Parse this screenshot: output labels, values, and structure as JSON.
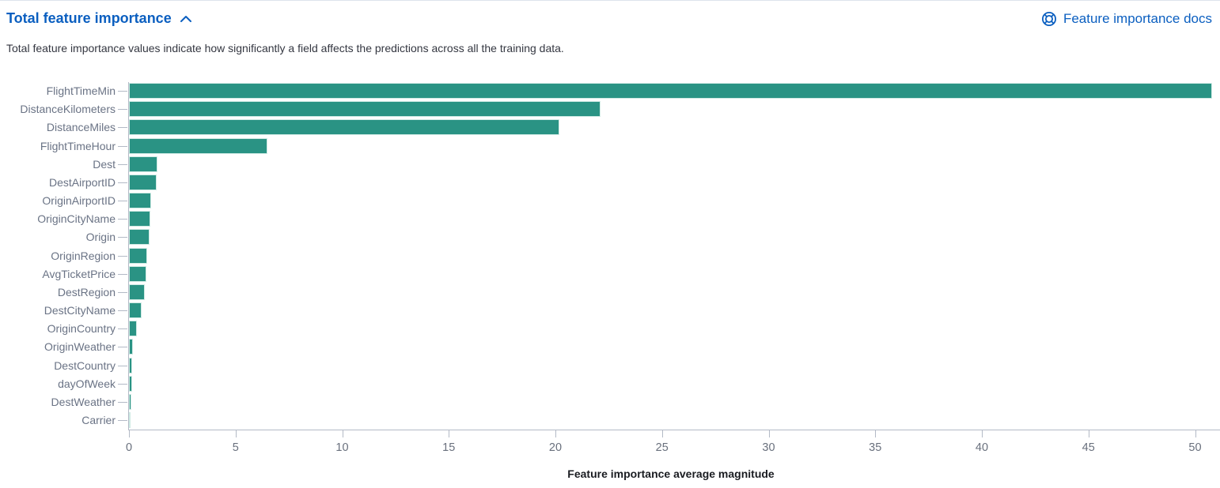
{
  "header": {
    "title": "Total feature importance",
    "docs_link": "Feature importance docs"
  },
  "description": "Total feature importance values indicate how significantly a field affects the predictions across all the training data.",
  "colors": {
    "link_blue": "#0b5fc0",
    "bar_teal": "#2a9384",
    "axis_gray": "#b3bac6"
  },
  "chart_data": {
    "type": "bar",
    "orientation": "horizontal",
    "title": "",
    "xlabel": "Feature importance average magnitude",
    "ylabel": "",
    "categories": [
      "FlightTimeMin",
      "DistanceKilometers",
      "DistanceMiles",
      "FlightTimeHour",
      "Dest",
      "DestAirportID",
      "OriginAirportID",
      "OriginCityName",
      "Origin",
      "OriginRegion",
      "AvgTicketPrice",
      "DestRegion",
      "DestCityName",
      "OriginCountry",
      "OriginWeather",
      "DestCountry",
      "dayOfWeek",
      "DestWeather",
      "Carrier"
    ],
    "values": [
      50.8,
      22.1,
      20.2,
      6.5,
      1.33,
      1.3,
      1.05,
      1.0,
      0.98,
      0.87,
      0.82,
      0.75,
      0.58,
      0.38,
      0.17,
      0.16,
      0.13,
      0.11,
      0.05
    ],
    "x_ticks": [
      0,
      5,
      10,
      15,
      20,
      25,
      30,
      35,
      40,
      45,
      50
    ],
    "xlim": [
      0,
      50.9
    ],
    "grid": false,
    "legend": "none"
  }
}
